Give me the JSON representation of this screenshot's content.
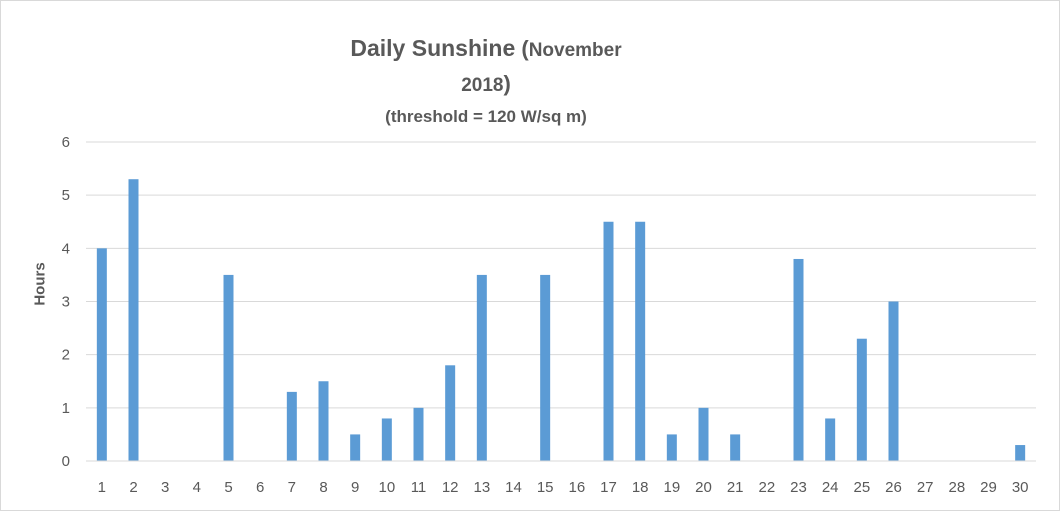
{
  "title_block": {
    "title_main": "Daily Sunshine",
    "title_open_paren": "(",
    "title_month": "November",
    "title_year": "2018",
    "title_close_paren": ")",
    "subtitle": "(threshold = 120 W/sq m)"
  },
  "colors": {
    "bar": "#5b9bd5",
    "grid": "#d9d9d9",
    "text": "#595959",
    "border": "#d9d9d9"
  },
  "chart_data": {
    "type": "bar",
    "title": "Daily Sunshine (November 2018)",
    "subtitle": "(threshold = 120 W/sq m)",
    "xlabel": "",
    "ylabel": "Hours",
    "ylim": [
      0,
      6
    ],
    "yticks": [
      "0",
      "1",
      "2",
      "3",
      "4",
      "5",
      "6"
    ],
    "grid": true,
    "legend": "none",
    "categories": [
      "1",
      "2",
      "3",
      "4",
      "5",
      "6",
      "7",
      "8",
      "9",
      "10",
      "11",
      "12",
      "13",
      "14",
      "15",
      "16",
      "17",
      "18",
      "19",
      "20",
      "21",
      "22",
      "23",
      "24",
      "25",
      "26",
      "27",
      "28",
      "29",
      "30"
    ],
    "values": [
      4.0,
      5.3,
      0,
      0,
      3.5,
      0,
      1.3,
      1.5,
      0.5,
      0.8,
      1.0,
      1.8,
      3.5,
      0,
      3.5,
      0,
      4.5,
      4.5,
      0.5,
      1.0,
      0.5,
      0,
      3.8,
      0.8,
      2.3,
      3.0,
      0,
      0,
      0,
      0.3
    ]
  }
}
